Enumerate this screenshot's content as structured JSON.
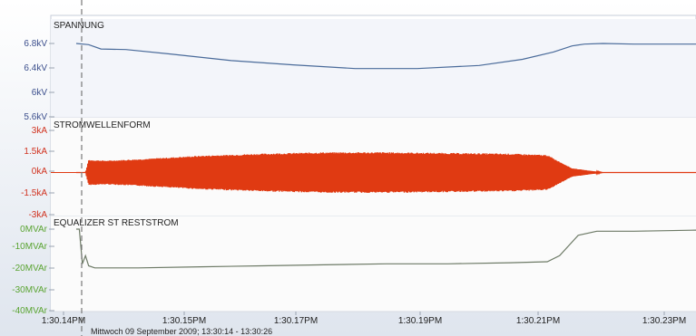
{
  "chart_data": {
    "type": "line",
    "footer": "Mittwoch 09 September 2009; 13:30:14 - 13:30:26",
    "x_ticks": [
      "1:30.14PM",
      "1:30.15PM",
      "1:30.17PM",
      "1:30.19PM",
      "1:30.21PM",
      "1:30.23PM"
    ],
    "panels": [
      {
        "id": "voltage",
        "title": "SPANNUNG",
        "unit": "kV",
        "color": "#4a6b9a",
        "tick_color": "#3b4e8c",
        "ylim": [
          5.6,
          6.8
        ],
        "ticks": [
          "6.8kV",
          "6.4kV",
          "6kV",
          "5.6kV"
        ],
        "series": [
          {
            "name": "",
            "x": [
              0.0,
              0.02,
              0.04,
              0.08,
              0.15,
              0.25,
              0.35,
              0.45,
              0.55,
              0.65,
              0.72,
              0.77,
              0.8,
              0.82,
              0.85,
              0.9,
              1.0
            ],
            "y": [
              6.8,
              6.78,
              6.71,
              6.7,
              6.63,
              6.52,
              6.45,
              6.39,
              6.39,
              6.44,
              6.54,
              6.66,
              6.76,
              6.79,
              6.8,
              6.79,
              6.79
            ]
          }
        ]
      },
      {
        "id": "current",
        "title": "STROMWELLENFORM",
        "unit": "kA",
        "color": "#e03a12",
        "tick_color": "#d0311e",
        "ylim": [
          -3,
          3
        ],
        "ticks": [
          "3kA",
          "1.5kA",
          "0kA",
          "-1.5kA",
          "-3kA"
        ],
        "series": [
          {
            "name": "",
            "x": [
              0.0,
              0.015,
              0.02,
              0.05,
              0.1,
              0.2,
              0.3,
              0.4,
              0.5,
              0.6,
              0.7,
              0.76,
              0.8,
              0.85,
              0.9,
              1.0
            ],
            "amplitude": [
              0.0,
              0.0,
              0.9,
              0.85,
              0.95,
              1.2,
              1.35,
              1.45,
              1.45,
              1.4,
              1.35,
              1.25,
              0.3,
              0.0,
              0.0,
              0.0
            ]
          }
        ]
      },
      {
        "id": "equalizer",
        "title": "EQUALIZER ST RESTSTROM",
        "unit": "MVAr",
        "color": "#6d7a66",
        "tick_color": "#5aa432",
        "ylim": [
          -40,
          0
        ],
        "ticks": [
          "0MVAr",
          "-10MVAr",
          "-20MVAr",
          "-30MVAr",
          "-40MVAr"
        ],
        "series": [
          {
            "name": "",
            "x": [
              0.0,
              0.005,
              0.01,
              0.015,
              0.02,
              0.03,
              0.1,
              0.2,
              0.3,
              0.4,
              0.5,
              0.6,
              0.7,
              0.76,
              0.78,
              0.81,
              0.84,
              0.9,
              1.0
            ],
            "y": [
              0.0,
              0.0,
              -17,
              -13,
              -18,
              -19,
              -19,
              -18.5,
              -18,
              -17.5,
              -17,
              -17,
              -16.5,
              -16,
              -13,
              -3,
              -1,
              -1,
              -0.5
            ]
          }
        ]
      }
    ]
  }
}
